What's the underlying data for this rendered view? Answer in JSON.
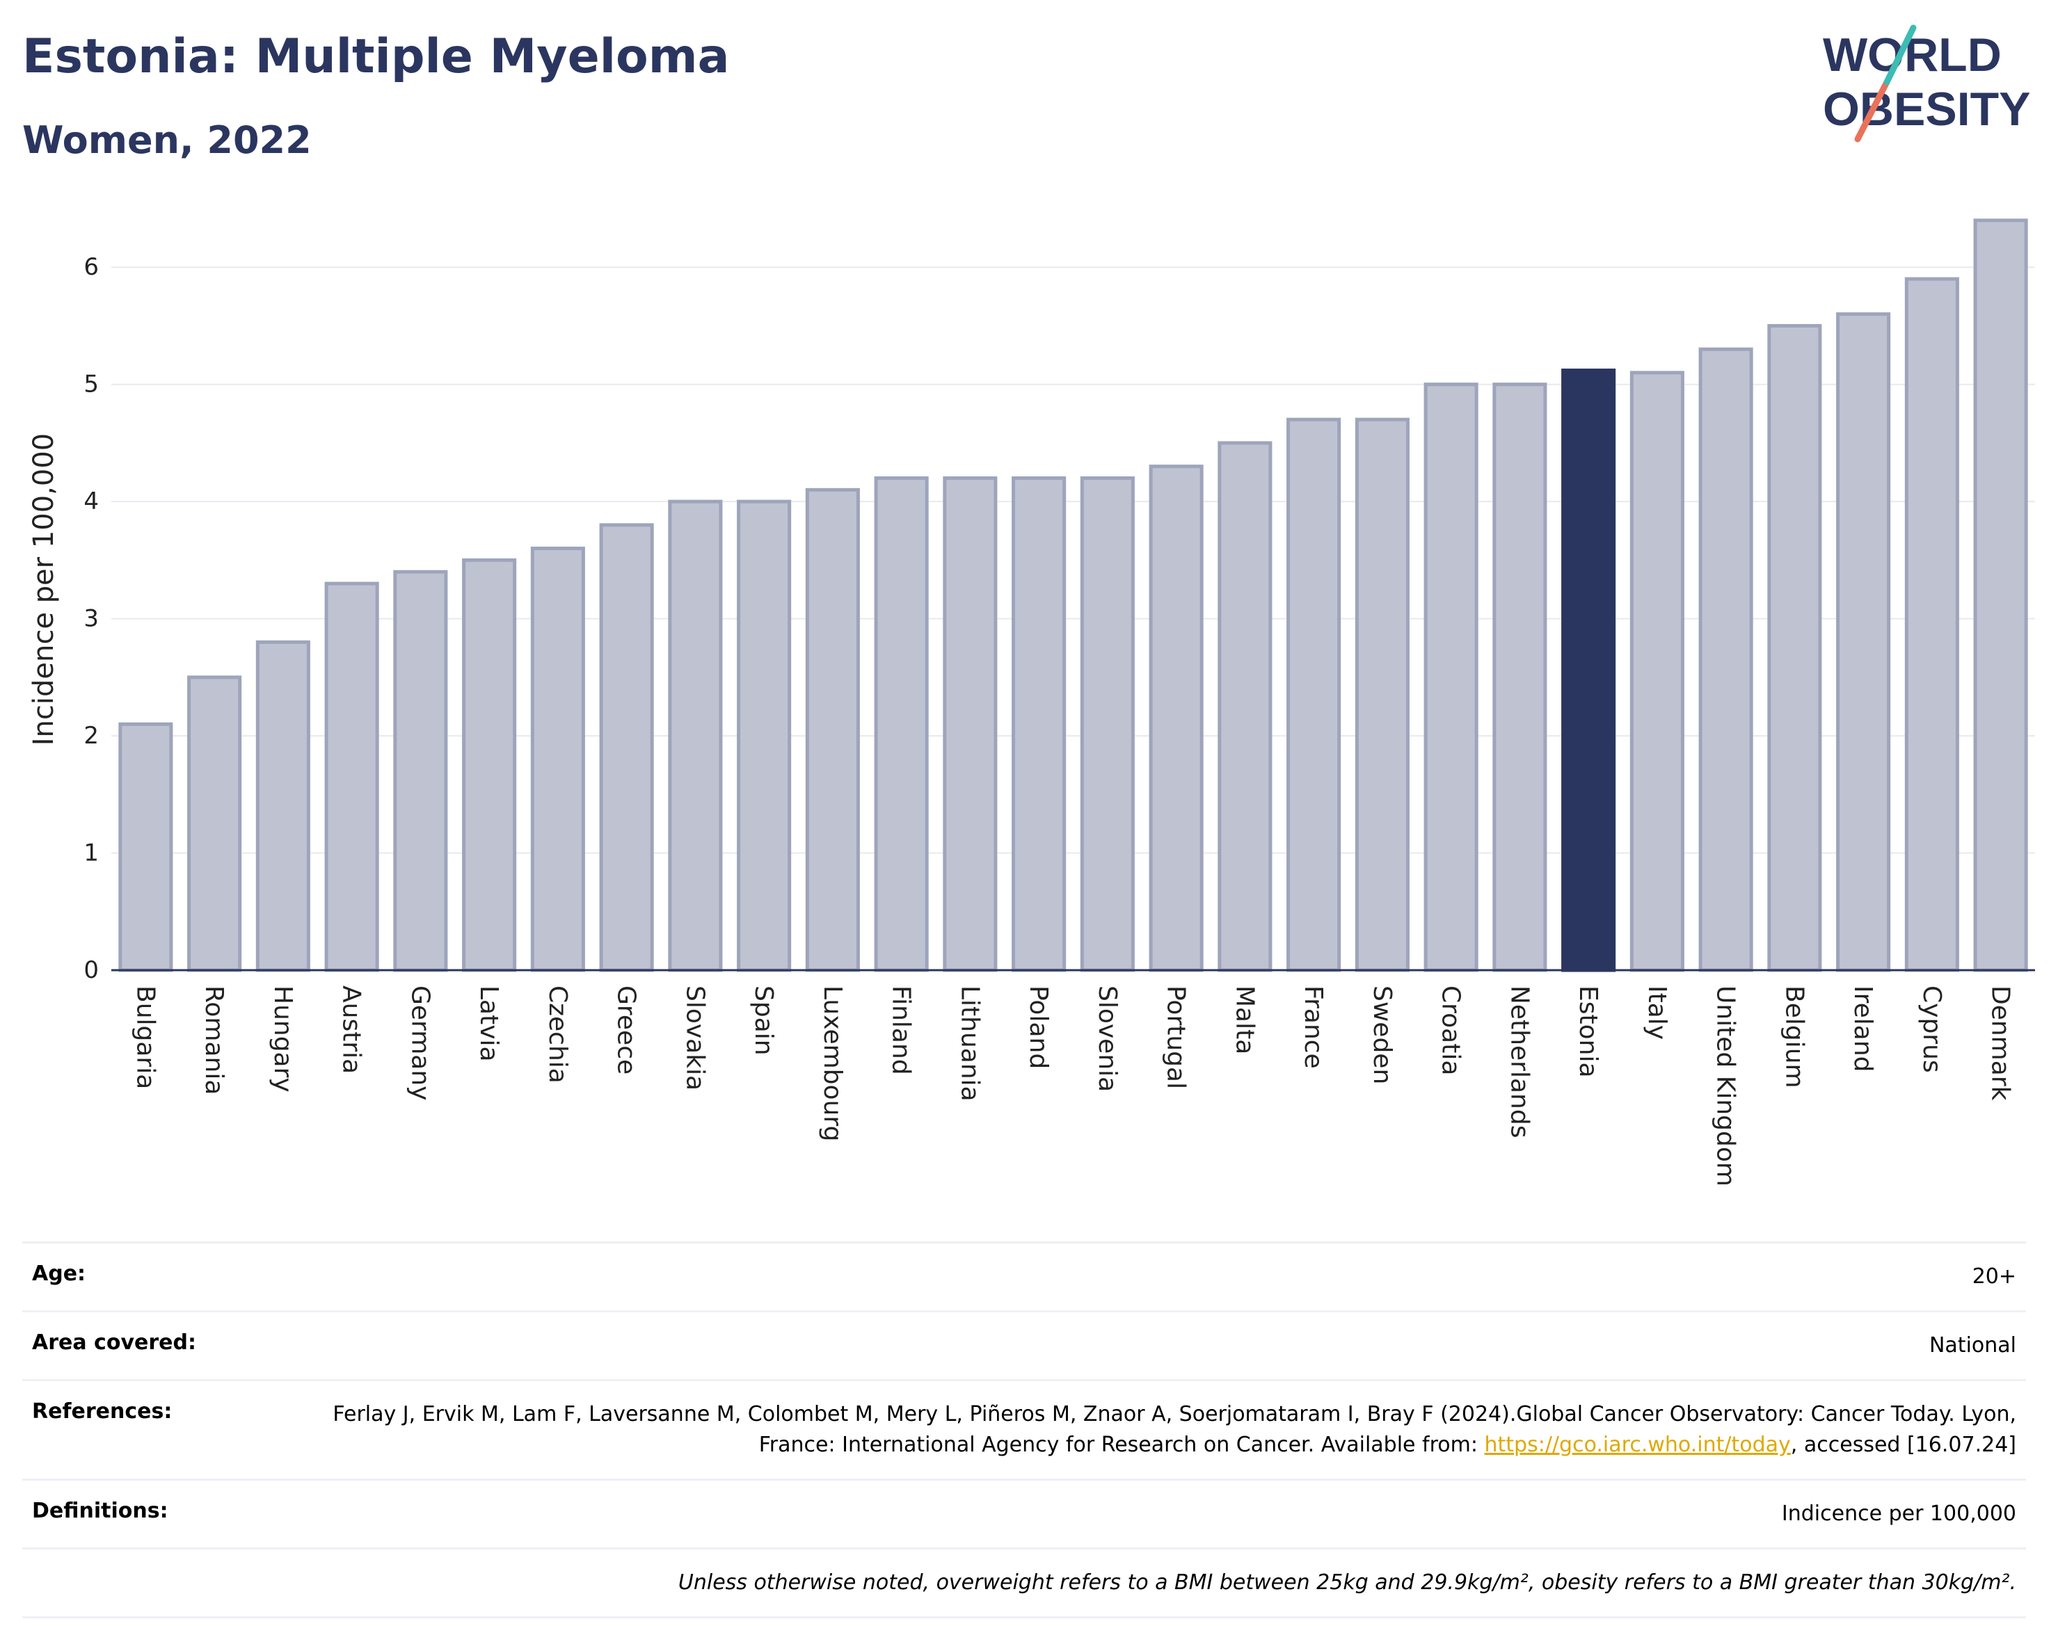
{
  "header": {
    "title": "Estonia: Multiple Myeloma",
    "subtitle": "Women, 2022",
    "logo_line1": "WORLD",
    "logo_line2": "OBESITY"
  },
  "colors": {
    "bar_default": "#bfc3d1",
    "bar_border": "#9ea4bb",
    "bar_highlight": "#2b3660",
    "title": "#2b3660",
    "gridline": "#e8eaf1"
  },
  "chart_data": {
    "type": "bar",
    "ylabel": "Incidence per 100,000",
    "xlabel": "",
    "ylim": [
      0,
      6.5
    ],
    "yticks": [
      0,
      1,
      2,
      3,
      4,
      5,
      6
    ],
    "grid": true,
    "highlight": "Estonia",
    "categories": [
      "Bulgaria",
      "Romania",
      "Hungary",
      "Austria",
      "Germany",
      "Latvia",
      "Czechia",
      "Greece",
      "Slovakia",
      "Spain",
      "Luxembourg",
      "Finland",
      "Lithuania",
      "Poland",
      "Slovenia",
      "Portugal",
      "Malta",
      "France",
      "Sweden",
      "Croatia",
      "Netherlands",
      "Estonia",
      "Italy",
      "United Kingdom",
      "Belgium",
      "Ireland",
      "Cyprus",
      "Denmark"
    ],
    "values": [
      2.1,
      2.5,
      2.8,
      3.3,
      3.4,
      3.5,
      3.6,
      3.8,
      4.0,
      4.0,
      4.1,
      4.2,
      4.2,
      4.2,
      4.2,
      4.3,
      4.5,
      4.7,
      4.7,
      5.0,
      5.0,
      5.12,
      5.1,
      5.3,
      5.5,
      5.6,
      5.9,
      6.4
    ]
  },
  "meta": {
    "age_label": "Age:",
    "age_value": "20+",
    "area_label": "Area covered:",
    "area_value": "National",
    "references_label": "References:",
    "references_text_1": "Ferlay J, Ervik M, Lam F, Laversanne M, Colombet M, Mery L, Piñeros M, Znaor A, Soerjomataram I, Bray F (2024).Global Cancer Observatory: Cancer Today. Lyon, France: International Agency for Research on Cancer. Available from: ",
    "references_link": "https://gco.iarc.who.int/today",
    "references_text_2": ", accessed [16.07.24]",
    "definitions_label": "Definitions:",
    "definitions_value": "Indicence per 100,000",
    "note": "Unless otherwise noted, overweight refers to a BMI between 25kg and 29.9kg/m², obesity refers to a BMI greater than 30kg/m²."
  }
}
